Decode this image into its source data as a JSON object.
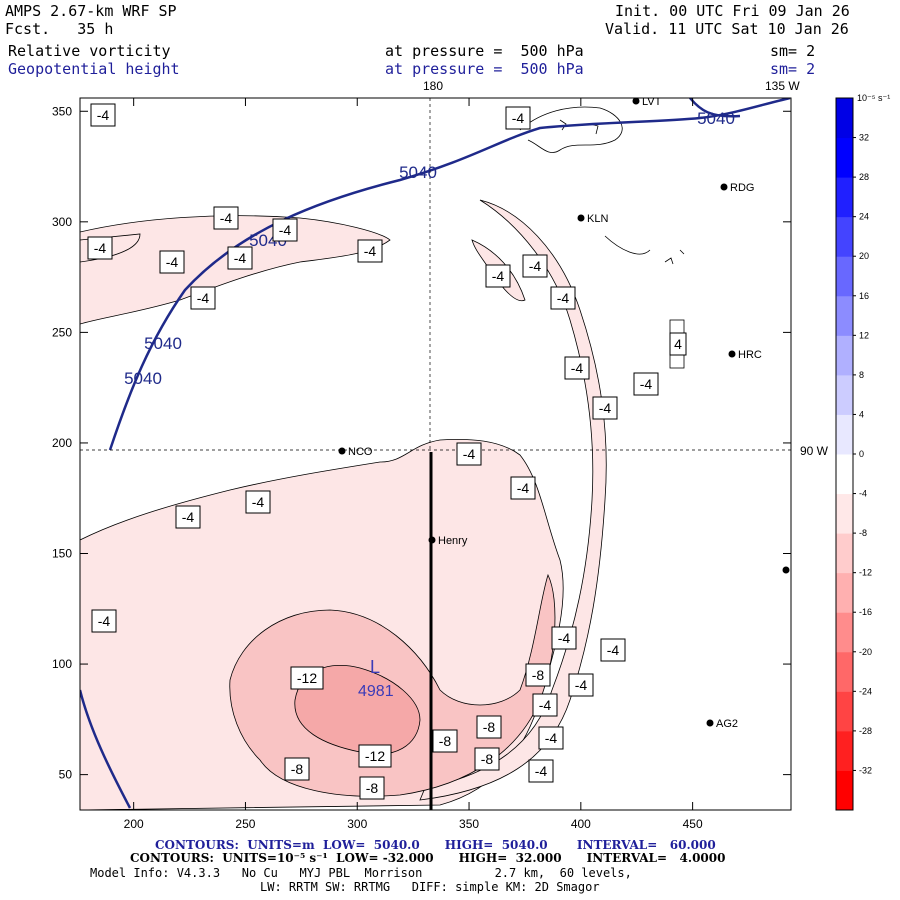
{
  "header": {
    "model": "AMPS 2.67-km WRF SP",
    "forecast": "Fcst.   35 h",
    "init": "Init. 00 UTC Fri 09 Jan 26",
    "valid": "Valid. 11 UTC Sat 10 Jan 26",
    "field1_name": "Relative vorticity",
    "field1_level": "at pressure =  500 hPa",
    "field1_sm": "sm= 2",
    "field2_name": "Geopotential height",
    "field2_level": "at pressure =  500 hPa",
    "field2_sm": "sm= 2"
  },
  "footer": {
    "line1": "CONTOURS:  UNITS=m  LOW=  5040.0      HIGH=  5040.0       INTERVAL=   60.000",
    "line2": "CONTOURS:  UNITS=10⁻⁵ s⁻¹  LOW= -32.000      HIGH=  32.000      INTERVAL=   4.0000",
    "line3": "Model Info: V4.3.3   No Cu   MYJ PBL  Morrison          2.7 km,  60 levels,",
    "line4": "LW: RRTM SW: RRTMG   DIFF: simple KM: 2D Smagor"
  },
  "colors": {
    "height_contour": "#1f2a8a",
    "neg4": "#fde6e6",
    "neg8": "#f9c4c4",
    "neg12": "#f5a8a8"
  },
  "chart_data": {
    "type": "heatmap",
    "title": "Relative vorticity and Geopotential height at 500 hPa",
    "x_ticks": [
      200,
      250,
      300,
      350,
      400,
      450
    ],
    "y_ticks": [
      50,
      100,
      150,
      200,
      250,
      300,
      350
    ],
    "xlim": [
      176,
      494
    ],
    "ylim": [
      34,
      356
    ],
    "meridian_labels": [
      "180",
      "135 W",
      "90 W"
    ],
    "height_contour_labels": [
      "5040",
      "5040",
      "5040",
      "5040",
      "5040"
    ],
    "vorticity_labels": [
      "-4",
      "-4",
      "-4",
      "-4",
      "-4",
      "-4",
      "-4",
      "-4",
      "-4",
      "-4",
      "-4",
      "-4",
      "-4",
      "-4",
      "-4",
      "-4",
      "-4",
      "-4",
      "-4",
      "-4",
      "-4",
      "-4",
      "-4",
      "-4",
      "-4",
      "-4",
      "-8",
      "-8",
      "-8",
      "-8",
      "-8",
      "-8",
      "-12",
      "-12",
      "4"
    ],
    "low": {
      "letter": "L",
      "value": "4981"
    },
    "stations": [
      "LVT",
      "RDG",
      "KLN",
      "HRC",
      "NCO",
      "Henry",
      "AG2"
    ],
    "colorbar": {
      "units": "10⁻⁵ s⁻¹",
      "levels": [
        -36,
        -32,
        -28,
        -24,
        -20,
        -16,
        -12,
        -8,
        -4,
        0,
        4,
        8,
        12,
        16,
        20,
        24,
        28,
        32,
        36
      ],
      "labels": [
        "32",
        "28",
        "24",
        "20",
        "16",
        "12",
        "8",
        "4",
        "0",
        "-4",
        "-8",
        "-12",
        "-16",
        "-20",
        "-24",
        "-28",
        "-32"
      ],
      "colors": [
        "#ff0000",
        "#ff2020",
        "#ff4444",
        "#ff6868",
        "#ff8c8c",
        "#ffb0b0",
        "#ffcccc",
        "#ffe8e8",
        "#ffffff",
        "#e8e8ff",
        "#ccccff",
        "#b0b0ff",
        "#8c8cff",
        "#6868ff",
        "#4444ff",
        "#2020ff",
        "#0000ff",
        "#0000e6"
      ]
    }
  }
}
